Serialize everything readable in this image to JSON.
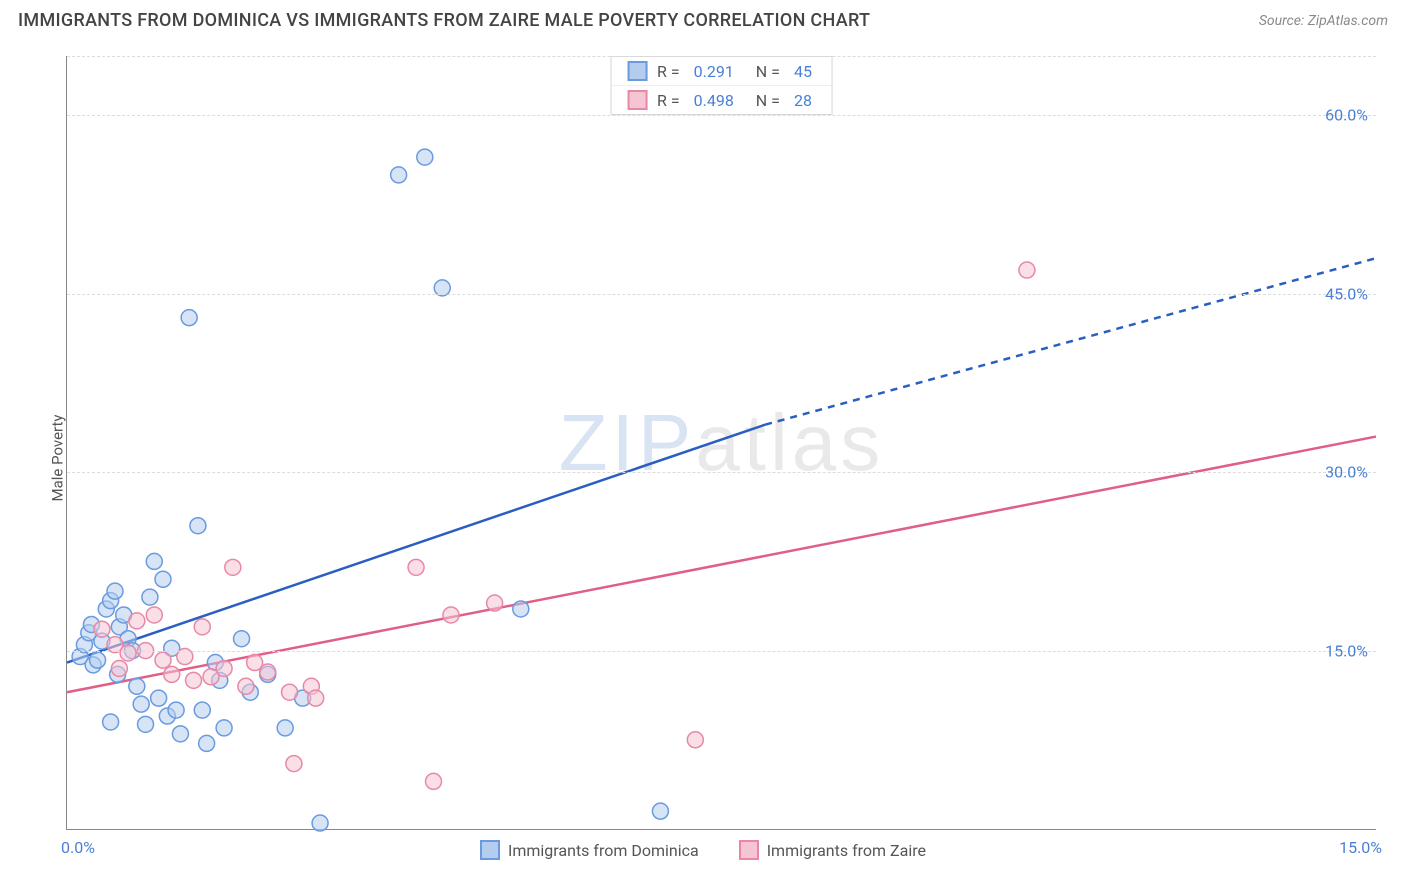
{
  "header": {
    "title": "IMMIGRANTS FROM DOMINICA VS IMMIGRANTS FROM ZAIRE MALE POVERTY CORRELATION CHART",
    "source": "Source: ZipAtlas.com"
  },
  "chart": {
    "type": "scatter",
    "ylabel": "Male Poverty",
    "xlim": [
      0.0,
      15.0
    ],
    "ylim": [
      0.0,
      65.0
    ],
    "x_ticks": [
      {
        "v": 0.0,
        "lbl": "0.0%"
      },
      {
        "v": 15.0,
        "lbl": "15.0%"
      }
    ],
    "y_ticks": [
      {
        "v": 15.0,
        "lbl": "15.0%"
      },
      {
        "v": 30.0,
        "lbl": "30.0%"
      },
      {
        "v": 45.0,
        "lbl": "45.0%"
      },
      {
        "v": 60.0,
        "lbl": "60.0%"
      }
    ],
    "y_gridlines": [
      15.0,
      30.0,
      45.0,
      60.0,
      65.0
    ],
    "background_color": "#ffffff",
    "grid_color": "#dcdcdc",
    "axis_color": "#888888",
    "marker_radius": 8,
    "marker_opacity": 0.55,
    "watermark": {
      "zip": "ZIP",
      "atlas": "atlas"
    },
    "series": [
      {
        "name": "Immigrants from Dominica",
        "color_fill": "#b4cdef",
        "color_stroke": "#6a9adf",
        "R": "0.291",
        "N": "45",
        "trend": {
          "solid": {
            "x1": 0.0,
            "y1": 14.0,
            "x2": 8.0,
            "y2": 34.0
          },
          "dashed": {
            "x1": 8.0,
            "y1": 34.0,
            "x2": 15.0,
            "y2": 48.0
          },
          "color": "#2a5fc1",
          "width": 2.5
        },
        "points": [
          [
            0.15,
            14.5
          ],
          [
            0.2,
            15.5
          ],
          [
            0.25,
            16.5
          ],
          [
            0.3,
            13.8
          ],
          [
            0.35,
            14.2
          ],
          [
            0.4,
            15.8
          ],
          [
            0.45,
            18.5
          ],
          [
            0.5,
            19.2
          ],
          [
            0.55,
            20.0
          ],
          [
            0.6,
            17.0
          ],
          [
            0.7,
            16.0
          ],
          [
            0.75,
            15.0
          ],
          [
            0.8,
            12.0
          ],
          [
            0.85,
            10.5
          ],
          [
            0.9,
            8.8
          ],
          [
            1.0,
            22.5
          ],
          [
            1.1,
            21.0
          ],
          [
            1.15,
            9.5
          ],
          [
            1.2,
            15.2
          ],
          [
            1.3,
            8.0
          ],
          [
            1.4,
            43.0
          ],
          [
            1.5,
            25.5
          ],
          [
            1.55,
            10.0
          ],
          [
            1.6,
            7.2
          ],
          [
            1.7,
            14.0
          ],
          [
            1.75,
            12.5
          ],
          [
            1.8,
            8.5
          ],
          [
            2.0,
            16.0
          ],
          [
            2.1,
            11.5
          ],
          [
            2.3,
            13.0
          ],
          [
            2.5,
            8.5
          ],
          [
            2.7,
            11.0
          ],
          [
            2.9,
            0.5
          ],
          [
            3.8,
            55.0
          ],
          [
            4.1,
            56.5
          ],
          [
            4.3,
            45.5
          ],
          [
            5.2,
            18.5
          ],
          [
            6.8,
            1.5
          ],
          [
            0.95,
            19.5
          ],
          [
            0.65,
            18.0
          ],
          [
            0.5,
            9.0
          ],
          [
            1.05,
            11.0
          ],
          [
            0.28,
            17.2
          ],
          [
            0.58,
            13.0
          ],
          [
            1.25,
            10.0
          ]
        ]
      },
      {
        "name": "Immigrants from Zaire",
        "color_fill": "#f6c5d4",
        "color_stroke": "#e888a6",
        "R": "0.498",
        "N": "28",
        "trend": {
          "solid": {
            "x1": 0.0,
            "y1": 11.5,
            "x2": 15.0,
            "y2": 33.0
          },
          "color": "#e05f86",
          "width": 2.5
        },
        "points": [
          [
            0.4,
            16.8
          ],
          [
            0.55,
            15.5
          ],
          [
            0.7,
            14.8
          ],
          [
            0.8,
            17.5
          ],
          [
            0.9,
            15.0
          ],
          [
            1.0,
            18.0
          ],
          [
            1.1,
            14.2
          ],
          [
            1.2,
            13.0
          ],
          [
            1.35,
            14.5
          ],
          [
            1.45,
            12.5
          ],
          [
            1.55,
            17.0
          ],
          [
            1.65,
            12.8
          ],
          [
            1.8,
            13.5
          ],
          [
            1.9,
            22.0
          ],
          [
            2.05,
            12.0
          ],
          [
            2.15,
            14.0
          ],
          [
            2.3,
            13.2
          ],
          [
            2.55,
            11.5
          ],
          [
            2.8,
            12.0
          ],
          [
            2.85,
            11.0
          ],
          [
            2.6,
            5.5
          ],
          [
            4.0,
            22.0
          ],
          [
            4.2,
            4.0
          ],
          [
            4.4,
            18.0
          ],
          [
            4.9,
            19.0
          ],
          [
            7.2,
            7.5
          ],
          [
            11.0,
            47.0
          ],
          [
            0.6,
            13.5
          ]
        ]
      }
    ],
    "bottom_legend": [
      {
        "label": "Immigrants from Dominica",
        "fill": "#b4cdef",
        "stroke": "#6a9adf"
      },
      {
        "label": "Immigrants from Zaire",
        "fill": "#f6c5d4",
        "stroke": "#e888a6"
      }
    ]
  }
}
